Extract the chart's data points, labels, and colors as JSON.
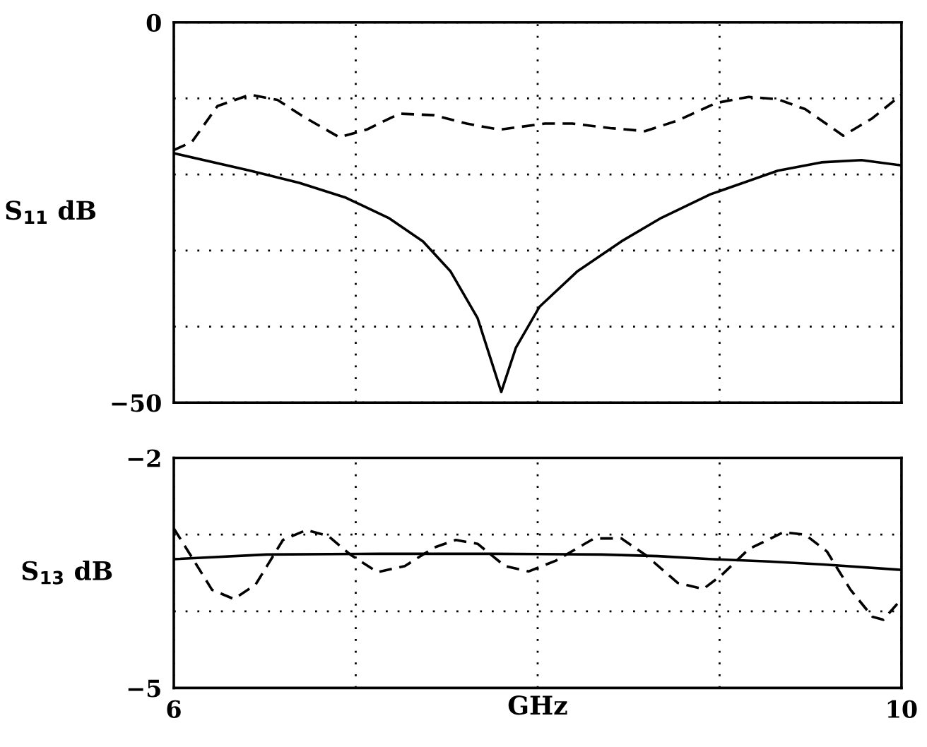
{
  "chart_data": [
    {
      "type": "line",
      "ylabel": "S$_{11}$ dB",
      "xlim": [
        6,
        10
      ],
      "ylim": [
        -50,
        0
      ],
      "xticks": [
        {
          "value": 6,
          "label": null
        },
        {
          "value": 7,
          "label": null
        },
        {
          "value": 8,
          "label": null
        },
        {
          "value": 9,
          "label": null
        },
        {
          "value": 10,
          "label": null
        }
      ],
      "yticks": [
        {
          "value": -50,
          "label": "−50"
        },
        {
          "value": -40,
          "label": null
        },
        {
          "value": -30,
          "label": null
        },
        {
          "value": -20,
          "label": null
        },
        {
          "value": -10,
          "label": null
        },
        {
          "value": 0,
          "label": "0"
        }
      ],
      "tick_labels": "y",
      "grid": true,
      "series": [
        {
          "color": "#000000",
          "line_style": "dashed",
          "x": [
            6,
            6.1,
            6.24,
            6.42,
            6.57,
            6.72,
            6.91,
            7.06,
            7.24,
            7.43,
            7.61,
            7.79,
            8.04,
            8.19,
            8.4,
            8.59,
            8.77,
            8.98,
            9.16,
            9.32,
            9.47,
            9.68,
            9.84,
            10
          ],
          "values": [
            -16.8,
            -15.7,
            -11,
            -9.5,
            -10.2,
            -12.5,
            -15.1,
            -14.1,
            -12,
            -12.2,
            -13.3,
            -14.1,
            -13.3,
            -13.3,
            -13.9,
            -14.3,
            -12.9,
            -10.6,
            -9.8,
            -10.1,
            -11.4,
            -14.9,
            -12.6,
            -9.5
          ]
        },
        {
          "color": "#000000",
          "line_style": "solid",
          "x": [
            6,
            6.42,
            6.69,
            6.94,
            7.18,
            7.37,
            7.52,
            7.67,
            7.8,
            7.88,
            8.01,
            8.22,
            8.46,
            8.68,
            8.95,
            9.32,
            9.56,
            9.78,
            10
          ],
          "values": [
            -17.2,
            -19.5,
            -21.1,
            -23,
            -25.7,
            -28.8,
            -32.7,
            -38.9,
            -48.6,
            -42.8,
            -37.4,
            -32.7,
            -28.8,
            -25.7,
            -22.6,
            -19.5,
            -18.4,
            -18.1,
            -18.8
          ]
        }
      ]
    },
    {
      "type": "line",
      "ylabel": "S$_{13}$ dB",
      "xlabel": "GHz",
      "xlim": [
        6,
        10
      ],
      "ylim": [
        -5,
        -2
      ],
      "xticks": [
        6,
        {
          "value": 7,
          "label": null
        },
        {
          "value": 8,
          "label": null
        },
        {
          "value": 9,
          "label": null
        },
        10
      ],
      "yticks": [
        {
          "value": -5,
          "label": "−5"
        },
        {
          "value": -4,
          "label": null
        },
        {
          "value": -3,
          "label": null
        },
        {
          "value": -2,
          "label": "−2"
        }
      ],
      "grid": true,
      "series": [
        {
          "color": "#000000",
          "line_style": "dashed",
          "x": [
            6,
            6.09,
            6.21,
            6.33,
            6.45,
            6.6,
            6.73,
            6.85,
            6.97,
            7.12,
            7.27,
            7.43,
            7.55,
            7.67,
            7.82,
            7.95,
            8.1,
            8.31,
            8.46,
            8.59,
            8.77,
            8.91,
            9.01,
            9.16,
            9.35,
            9.47,
            9.59,
            9.72,
            9.84,
            9.9,
            10
          ],
          "values": [
            -2.92,
            -3.26,
            -3.72,
            -3.84,
            -3.65,
            -3.07,
            -2.94,
            -3.02,
            -3.26,
            -3.49,
            -3.41,
            -3.17,
            -3.07,
            -3.12,
            -3.41,
            -3.48,
            -3.34,
            -3.05,
            -3.05,
            -3.26,
            -3.63,
            -3.71,
            -3.53,
            -3.19,
            -2.97,
            -3.0,
            -3.22,
            -3.72,
            -4.07,
            -4.11,
            -3.84
          ]
        },
        {
          "color": "#000000",
          "line_style": "solid",
          "x": [
            6,
            6.51,
            7.13,
            7.74,
            8.35,
            8.66,
            8.96,
            9.27,
            9.57,
            10
          ],
          "values": [
            -3.32,
            -3.26,
            -3.25,
            -3.25,
            -3.26,
            -3.28,
            -3.32,
            -3.35,
            -3.39,
            -3.46
          ]
        }
      ]
    }
  ]
}
